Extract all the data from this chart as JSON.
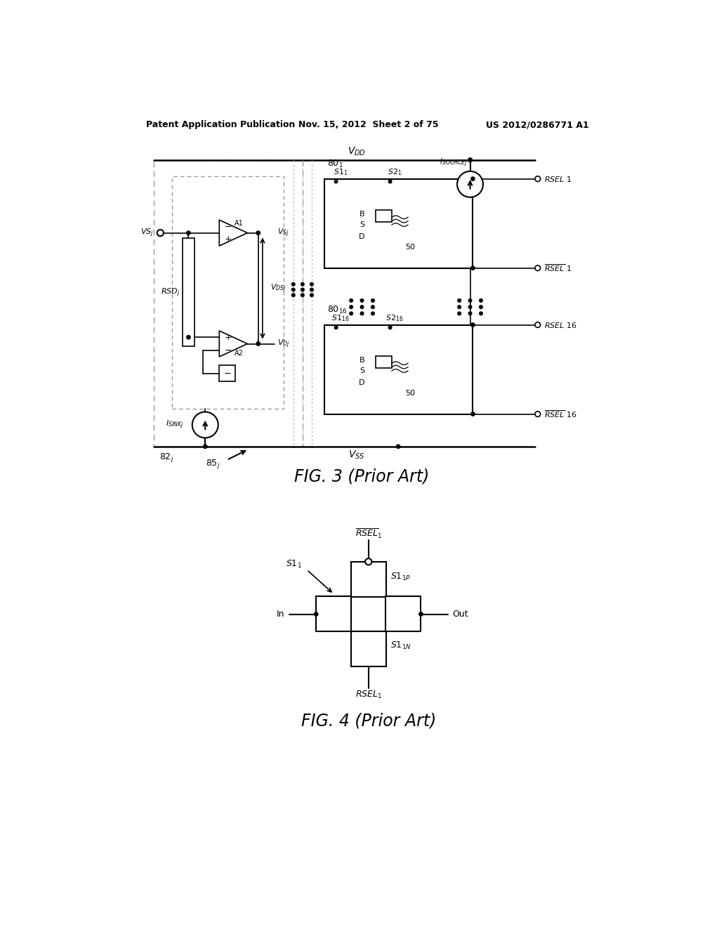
{
  "background_color": "#ffffff",
  "header_left": "Patent Application Publication",
  "header_center": "Nov. 15, 2012  Sheet 2 of 75",
  "header_right": "US 2012/0286771 A1",
  "fig3_label": "FIG. 3 (Prior Art)",
  "fig4_label": "FIG. 4 (Prior Art)",
  "text_color": "#000000",
  "line_color": "#000000",
  "dashed_color": "#888888"
}
